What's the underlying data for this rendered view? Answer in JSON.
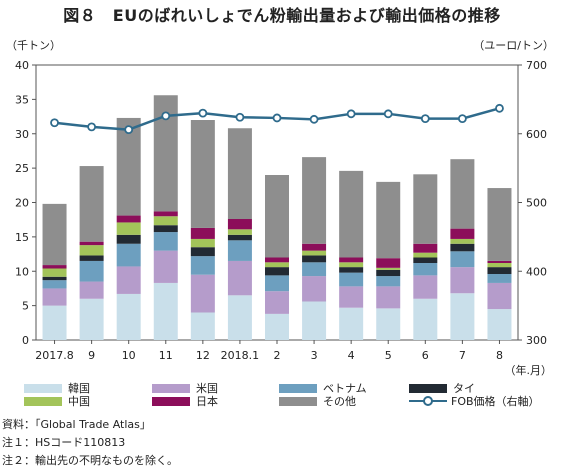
{
  "title": "図８　EUのばれいしょでん粉輸出量および輸出価格の推移",
  "unit_left": "（千トン）",
  "unit_right": "（ユーロ/トン）",
  "chart_data": {
    "type": "bar",
    "stacked": true,
    "categories": [
      "2017.8",
      "9",
      "10",
      "11",
      "12",
      "2018.1",
      "2",
      "3",
      "4",
      "5",
      "6",
      "7",
      "8"
    ],
    "xlabel": "（年.月）",
    "ylabel_left": "（千トン）",
    "ylabel_right": "（ユーロ/トン）",
    "ylim_left": [
      0,
      40
    ],
    "yticks_left": [
      0,
      5,
      10,
      15,
      20,
      25,
      30,
      35,
      40
    ],
    "ylim_right": [
      300,
      700
    ],
    "yticks_right": [
      300,
      400,
      500,
      600,
      700
    ],
    "grid": false,
    "series": [
      {
        "name": "韓国",
        "color": "#c9dfea",
        "values": [
          5.0,
          6.0,
          6.7,
          8.3,
          4.0,
          6.5,
          3.8,
          5.6,
          4.7,
          4.6,
          6.0,
          6.8,
          4.5
        ]
      },
      {
        "name": "米国",
        "color": "#b59ccb",
        "values": [
          2.5,
          2.5,
          4.0,
          4.7,
          5.5,
          5.0,
          3.3,
          3.7,
          3.1,
          3.2,
          3.4,
          3.8,
          3.8
        ]
      },
      {
        "name": "ベトナム",
        "color": "#6d9fbf",
        "values": [
          1.2,
          3.0,
          3.3,
          2.7,
          2.7,
          3.0,
          2.3,
          2.0,
          2.0,
          1.5,
          1.8,
          2.3,
          1.3
        ]
      },
      {
        "name": "タイ",
        "color": "#222a33",
        "values": [
          0.5,
          0.8,
          1.3,
          1.0,
          1.3,
          0.8,
          1.2,
          1.0,
          0.8,
          0.9,
          0.8,
          1.1,
          1.0
        ]
      },
      {
        "name": "中国",
        "color": "#a3c45a",
        "values": [
          1.2,
          1.5,
          1.8,
          1.3,
          1.2,
          0.8,
          0.7,
          0.7,
          0.7,
          0.3,
          0.7,
          0.7,
          0.6
        ]
      },
      {
        "name": "日本",
        "color": "#8c0e5a",
        "values": [
          0.5,
          0.5,
          1.0,
          0.7,
          1.6,
          1.5,
          0.7,
          1.0,
          0.7,
          1.4,
          1.3,
          1.5,
          0.3
        ]
      },
      {
        "name": "その他",
        "color": "#8e8e8e",
        "values": [
          8.9,
          11.0,
          14.2,
          16.9,
          15.7,
          13.2,
          12.0,
          12.6,
          12.6,
          11.1,
          10.1,
          10.1,
          10.6
        ]
      }
    ],
    "line": {
      "name": "FOB価格（右軸）",
      "axis": "right",
      "color": "#2f6b8c",
      "values": [
        616,
        610,
        606,
        626,
        630,
        624,
        623,
        621,
        629,
        629,
        622,
        622,
        637
      ]
    },
    "legend_position": "bottom"
  },
  "notes": [
    "資料：「Global Trade Atlas」",
    "注１：HSコード110813",
    "注２：輸出先の不明なものを除く。"
  ]
}
